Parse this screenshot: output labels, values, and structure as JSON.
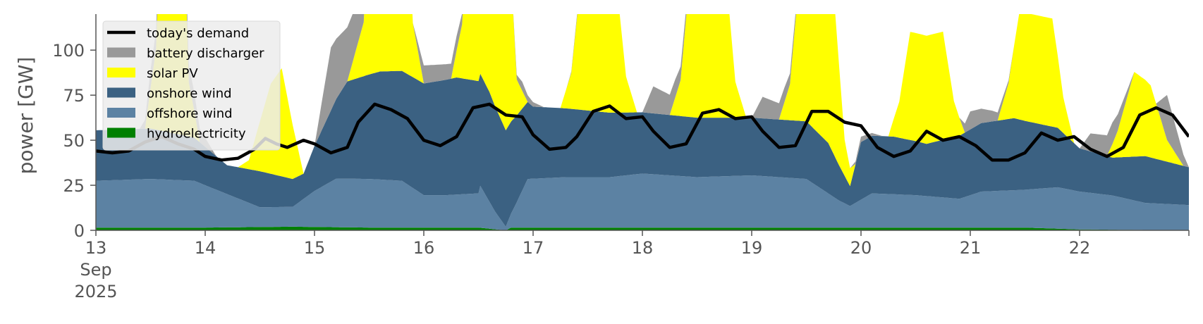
{
  "chart_data": {
    "type": "area",
    "ylabel": "power [GW]",
    "ylim": [
      0,
      120
    ],
    "yticks": [
      0,
      25,
      50,
      75,
      100
    ],
    "x_unit": "days since 13 Sep 2025 00:00",
    "xlim": [
      0,
      10
    ],
    "xtick_labels": [
      {
        "x": 0,
        "lines": [
          "13",
          "Sep",
          "2025"
        ]
      },
      {
        "x": 1,
        "lines": [
          "14"
        ]
      },
      {
        "x": 2,
        "lines": [
          "15"
        ]
      },
      {
        "x": 3,
        "lines": [
          "16"
        ]
      },
      {
        "x": 4,
        "lines": [
          "17"
        ]
      },
      {
        "x": 5,
        "lines": [
          "18"
        ]
      },
      {
        "x": 6,
        "lines": [
          "19"
        ]
      },
      {
        "x": 7,
        "lines": [
          "20"
        ]
      },
      {
        "x": 8,
        "lines": [
          "21"
        ]
      },
      {
        "x": 9,
        "lines": [
          "22"
        ]
      }
    ],
    "grid": false,
    "legend_position": "top-left",
    "legend": [
      {
        "label": "today's demand",
        "kind": "line",
        "color": "#000000"
      },
      {
        "label": "battery discharger",
        "kind": "area",
        "color": "#999999"
      },
      {
        "label": "solar PV",
        "kind": "area",
        "color": "#ffff00"
      },
      {
        "label": "onshore wind",
        "kind": "area",
        "color": "#3b6182"
      },
      {
        "label": "offshore wind",
        "kind": "area",
        "color": "#5c82a3"
      },
      {
        "label": "hydroelectricity",
        "kind": "area",
        "color": "#008000"
      }
    ],
    "stack_order_bottom_to_top": [
      "hydroelectricity",
      "offshore wind",
      "onshore wind",
      "solar PV",
      "battery discharger"
    ],
    "series": [
      {
        "name": "hydroelectricity",
        "color": "#008000",
        "points": [
          [
            0,
            1.5
          ],
          [
            1,
            1.5
          ],
          [
            1.8,
            2
          ],
          [
            2.5,
            1.5
          ],
          [
            3.5,
            1.5
          ],
          [
            3.75,
            0
          ],
          [
            3.8,
            1.5
          ],
          [
            4.5,
            1.5
          ],
          [
            5.5,
            1.5
          ],
          [
            6.5,
            1.5
          ],
          [
            7.5,
            1.5
          ],
          [
            8.5,
            1.5
          ],
          [
            9,
            0.5
          ],
          [
            10,
            0
          ]
        ]
      },
      {
        "name": "offshore wind",
        "color": "#5c82a3",
        "points": [
          [
            0,
            26
          ],
          [
            0.5,
            27
          ],
          [
            0.9,
            26
          ],
          [
            1.3,
            16
          ],
          [
            1.5,
            11
          ],
          [
            1.8,
            11
          ],
          [
            2.0,
            20
          ],
          [
            2.2,
            27
          ],
          [
            2.5,
            27
          ],
          [
            2.8,
            26
          ],
          [
            3.0,
            18
          ],
          [
            3.2,
            18
          ],
          [
            3.5,
            19
          ],
          [
            3.5,
            25
          ],
          [
            3.65,
            10
          ],
          [
            3.75,
            2
          ],
          [
            3.85,
            14
          ],
          [
            3.95,
            27
          ],
          [
            4.3,
            28
          ],
          [
            4.7,
            28
          ],
          [
            5.0,
            30
          ],
          [
            5.5,
            28
          ],
          [
            6.0,
            29
          ],
          [
            6.5,
            27
          ],
          [
            6.8,
            15
          ],
          [
            6.9,
            12
          ],
          [
            7.1,
            19
          ],
          [
            7.5,
            18
          ],
          [
            7.9,
            16
          ],
          [
            8.1,
            20
          ],
          [
            8.5,
            21
          ],
          [
            8.8,
            23
          ],
          [
            9.0,
            21
          ],
          [
            9.3,
            19
          ],
          [
            9.6,
            15
          ],
          [
            10,
            14
          ]
        ]
      },
      {
        "name": "onshore wind",
        "color": "#3b6182",
        "points": [
          [
            0,
            28
          ],
          [
            0.5,
            28
          ],
          [
            0.9,
            24
          ],
          [
            1.2,
            16
          ],
          [
            1.5,
            20
          ],
          [
            1.9,
            14
          ],
          [
            2.0,
            25
          ],
          [
            2.3,
            54
          ],
          [
            2.6,
            60
          ],
          [
            3.0,
            62
          ],
          [
            3.3,
            65
          ],
          [
            3.6,
            61
          ],
          [
            3.8,
            51
          ],
          [
            4.0,
            40
          ],
          [
            4.5,
            37
          ],
          [
            5.0,
            34
          ],
          [
            5.5,
            33
          ],
          [
            6.0,
            32
          ],
          [
            6.5,
            32
          ],
          [
            6.7,
            28
          ],
          [
            6.9,
            11
          ],
          [
            7.0,
            32
          ],
          [
            7.3,
            32
          ],
          [
            7.6,
            29
          ],
          [
            7.9,
            35
          ],
          [
            8.1,
            38
          ],
          [
            8.4,
            40
          ],
          [
            8.8,
            33
          ],
          [
            9.0,
            24
          ],
          [
            9.3,
            21
          ],
          [
            9.6,
            26
          ],
          [
            10,
            21
          ]
        ]
      },
      {
        "name": "solar PV",
        "color": "#ffff00",
        "points": [
          [
            0,
            0
          ],
          [
            0.45,
            0
          ],
          [
            0.55,
            45
          ],
          [
            0.6,
            130
          ],
          [
            0.8,
            130
          ],
          [
            0.85,
            30
          ],
          [
            0.95,
            0
          ],
          [
            1.3,
            0
          ],
          [
            1.4,
            5
          ],
          [
            1.6,
            50
          ],
          [
            1.7,
            60
          ],
          [
            1.8,
            30
          ],
          [
            1.9,
            0
          ],
          [
            2.3,
            0
          ],
          [
            2.45,
            30
          ],
          [
            2.55,
            160
          ],
          [
            2.8,
            160
          ],
          [
            2.9,
            30
          ],
          [
            3.0,
            0
          ],
          [
            3.25,
            0
          ],
          [
            3.35,
            30
          ],
          [
            3.45,
            140
          ],
          [
            3.75,
            140
          ],
          [
            3.85,
            20
          ],
          [
            3.95,
            0
          ],
          [
            4.25,
            0
          ],
          [
            4.35,
            20
          ],
          [
            4.45,
            80
          ],
          [
            4.75,
            80
          ],
          [
            4.85,
            20
          ],
          [
            4.95,
            0
          ],
          [
            5.25,
            0
          ],
          [
            5.35,
            20
          ],
          [
            5.45,
            90
          ],
          [
            5.75,
            90
          ],
          [
            5.85,
            20
          ],
          [
            5.95,
            0
          ],
          [
            6.25,
            0
          ],
          [
            6.35,
            20
          ],
          [
            6.45,
            90
          ],
          [
            6.75,
            90
          ],
          [
            6.85,
            20
          ],
          [
            6.95,
            0
          ],
          [
            7.25,
            0
          ],
          [
            7.35,
            20
          ],
          [
            7.45,
            60
          ],
          [
            7.75,
            60
          ],
          [
            7.85,
            20
          ],
          [
            7.95,
            0
          ],
          [
            8.25,
            0
          ],
          [
            8.35,
            20
          ],
          [
            8.45,
            60
          ],
          [
            8.75,
            60
          ],
          [
            8.85,
            20
          ],
          [
            8.95,
            0
          ],
          [
            9.25,
            0
          ],
          [
            9.35,
            15
          ],
          [
            9.5,
            47
          ],
          [
            9.65,
            40
          ],
          [
            9.8,
            12
          ],
          [
            9.95,
            0
          ],
          [
            10,
            0
          ]
        ]
      },
      {
        "name": "battery discharger",
        "color": "#999999",
        "points": [
          [
            0,
            0
          ],
          [
            0.4,
            0
          ],
          [
            0.5,
            10
          ],
          [
            0.9,
            10
          ],
          [
            1.1,
            0
          ],
          [
            2.0,
            0
          ],
          [
            2.15,
            35
          ],
          [
            2.3,
            30
          ],
          [
            2.45,
            20
          ],
          [
            2.55,
            0
          ],
          [
            2.9,
            0
          ],
          [
            3.0,
            10
          ],
          [
            3.3,
            8
          ],
          [
            3.5,
            0
          ],
          [
            3.8,
            0
          ],
          [
            3.9,
            5
          ],
          [
            4.1,
            0
          ],
          [
            4.3,
            0
          ],
          [
            4.5,
            3
          ],
          [
            4.7,
            0
          ],
          [
            5.0,
            0
          ],
          [
            5.1,
            15
          ],
          [
            5.3,
            10
          ],
          [
            5.5,
            0
          ],
          [
            6.0,
            0
          ],
          [
            6.1,
            12
          ],
          [
            6.3,
            8
          ],
          [
            6.5,
            0
          ],
          [
            6.9,
            0
          ],
          [
            7.0,
            3
          ],
          [
            7.2,
            0
          ],
          [
            7.9,
            0
          ],
          [
            8.0,
            10
          ],
          [
            8.2,
            6
          ],
          [
            8.4,
            0
          ],
          [
            9.0,
            0
          ],
          [
            9.1,
            10
          ],
          [
            9.3,
            12
          ],
          [
            9.5,
            0
          ],
          [
            9.7,
            0
          ],
          [
            9.8,
            25
          ],
          [
            10,
            0
          ]
        ]
      },
      {
        "name": "today's demand",
        "color": "#000000",
        "points": [
          [
            0,
            44
          ],
          [
            0.15,
            43
          ],
          [
            0.3,
            44
          ],
          [
            0.45,
            49
          ],
          [
            0.6,
            52
          ],
          [
            0.75,
            48
          ],
          [
            0.9,
            45
          ],
          [
            1.0,
            41
          ],
          [
            1.15,
            39
          ],
          [
            1.3,
            40
          ],
          [
            1.45,
            45
          ],
          [
            1.55,
            51
          ],
          [
            1.65,
            48
          ],
          [
            1.75,
            46
          ],
          [
            1.9,
            50
          ],
          [
            2.0,
            48
          ],
          [
            2.15,
            43
          ],
          [
            2.3,
            46
          ],
          [
            2.4,
            60
          ],
          [
            2.55,
            70
          ],
          [
            2.7,
            67
          ],
          [
            2.85,
            62
          ],
          [
            3.0,
            50
          ],
          [
            3.15,
            47
          ],
          [
            3.3,
            52
          ],
          [
            3.45,
            68
          ],
          [
            3.6,
            70
          ],
          [
            3.75,
            64
          ],
          [
            3.9,
            63
          ],
          [
            4.0,
            53
          ],
          [
            4.15,
            45
          ],
          [
            4.3,
            46
          ],
          [
            4.4,
            52
          ],
          [
            4.55,
            66
          ],
          [
            4.7,
            69
          ],
          [
            4.85,
            62
          ],
          [
            5.0,
            63
          ],
          [
            5.1,
            55
          ],
          [
            5.25,
            46
          ],
          [
            5.4,
            48
          ],
          [
            5.55,
            65
          ],
          [
            5.7,
            67
          ],
          [
            5.85,
            62
          ],
          [
            6.0,
            63
          ],
          [
            6.1,
            55
          ],
          [
            6.25,
            46
          ],
          [
            6.4,
            47
          ],
          [
            6.55,
            66
          ],
          [
            6.7,
            66
          ],
          [
            6.85,
            60
          ],
          [
            7.0,
            58
          ],
          [
            7.15,
            46
          ],
          [
            7.3,
            41
          ],
          [
            7.45,
            44
          ],
          [
            7.6,
            55
          ],
          [
            7.75,
            50
          ],
          [
            7.9,
            52
          ],
          [
            8.05,
            47
          ],
          [
            8.2,
            39
          ],
          [
            8.35,
            39
          ],
          [
            8.5,
            43
          ],
          [
            8.65,
            54
          ],
          [
            8.8,
            50
          ],
          [
            8.95,
            52
          ],
          [
            9.1,
            45
          ],
          [
            9.25,
            41
          ],
          [
            9.4,
            46
          ],
          [
            9.55,
            64
          ],
          [
            9.7,
            68
          ],
          [
            9.85,
            64
          ],
          [
            10,
            52
          ]
        ]
      }
    ]
  }
}
